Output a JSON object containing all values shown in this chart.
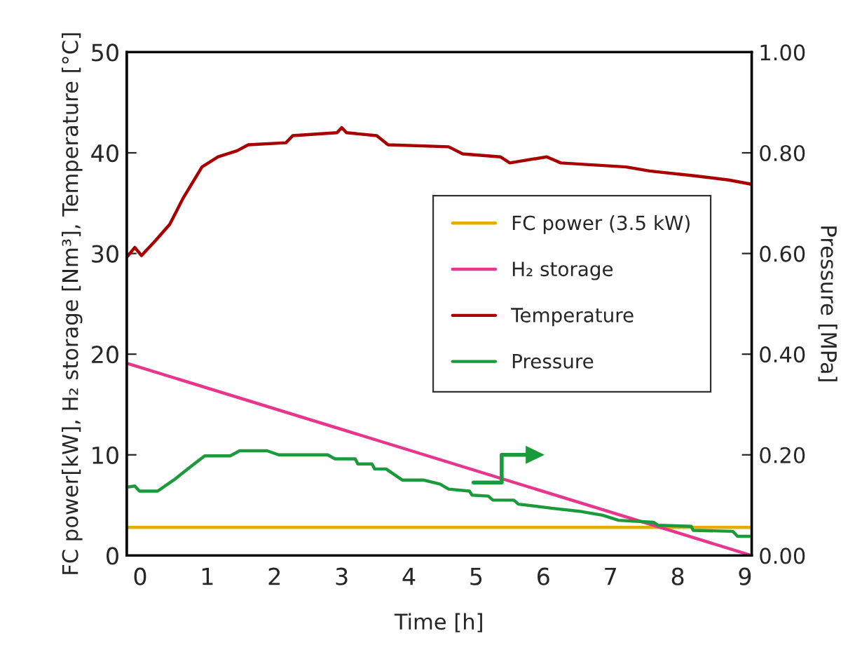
{
  "chart_data": {
    "type": "line",
    "xlabel": "Time [h]",
    "ylabel": "FC power[kW], H₂ storage [Nm³], Temperature [°C]",
    "y2label": "Pressure [MPa]",
    "xlim": [
      -0.2,
      9.1
    ],
    "xticks": [
      0,
      1,
      2,
      3,
      4,
      5,
      6,
      7,
      8,
      9
    ],
    "ylim": [
      0,
      50
    ],
    "yticks": [
      0,
      10,
      20,
      30,
      40,
      50
    ],
    "y2lim": [
      0,
      1
    ],
    "y2ticks": [
      {
        "value": 0,
        "label": "0.00"
      },
      {
        "value": 0.2,
        "label": "0.20"
      },
      {
        "value": 0.4,
        "label": "0.40"
      },
      {
        "value": 0.6,
        "label": "0.60"
      },
      {
        "value": 0.8,
        "label": "0.80"
      },
      {
        "value": 1,
        "label": "1.00"
      }
    ],
    "grid": false,
    "legend": "right",
    "marker": "none",
    "line_style": "solid",
    "series": [
      {
        "name": "FC power (3.5 kW)",
        "color": "#e0b000",
        "x": [
          -0.2,
          9.1
        ],
        "values": [
          2.8,
          2.8
        ]
      },
      {
        "name": "H₂ storage",
        "color": "#e8368c",
        "x": [
          -0.2,
          9.1
        ],
        "values": [
          19.1,
          0
        ]
      },
      {
        "name": "Temperature",
        "color": "#a80000",
        "x": [
          -0.19,
          -0.08,
          0.02,
          0.23,
          0.44,
          0.64,
          0.92,
          1.16,
          1.44,
          1.61,
          2.17,
          2.27,
          2.93,
          3.0,
          3.07,
          3.52,
          3.69,
          4.59,
          4.8,
          5.36,
          5.5,
          6.05,
          6.26,
          7.23,
          7.58,
          8.27,
          8.76,
          9.08
        ],
        "values": [
          29.7,
          30.6,
          29.8,
          31.3,
          32.9,
          35.5,
          38.6,
          39.6,
          40.2,
          40.8,
          41.0,
          41.7,
          42.0,
          42.5,
          42.0,
          41.7,
          40.8,
          40.6,
          39.9,
          39.6,
          39.0,
          39.6,
          39.0,
          38.6,
          38.2,
          37.7,
          37.3,
          36.9
        ]
      },
      {
        "name": "Pressure",
        "color": "#1a9a3a",
        "axis": "y2",
        "x": [
          -0.19,
          -0.08,
          -0.01,
          0.26,
          0.5,
          0.71,
          0.96,
          1.34,
          1.48,
          1.89,
          2.06,
          2.79,
          2.9,
          3.2,
          3.24,
          3.45,
          3.49,
          3.66,
          3.9,
          4.21,
          4.46,
          4.59,
          4.9,
          4.94,
          5.18,
          5.25,
          5.56,
          5.63,
          6.12,
          6.53,
          6.88,
          7.12,
          7.64,
          7.71,
          8.2,
          8.23,
          8.82,
          8.89,
          9.08
        ],
        "values": [
          0.136,
          0.138,
          0.128,
          0.128,
          0.15,
          0.172,
          0.198,
          0.198,
          0.208,
          0.208,
          0.2,
          0.2,
          0.192,
          0.192,
          0.182,
          0.182,
          0.172,
          0.172,
          0.15,
          0.15,
          0.142,
          0.132,
          0.128,
          0.12,
          0.118,
          0.11,
          0.11,
          0.102,
          0.094,
          0.088,
          0.08,
          0.07,
          0.066,
          0.06,
          0.058,
          0.05,
          0.048,
          0.038,
          0.038
        ]
      }
    ]
  }
}
